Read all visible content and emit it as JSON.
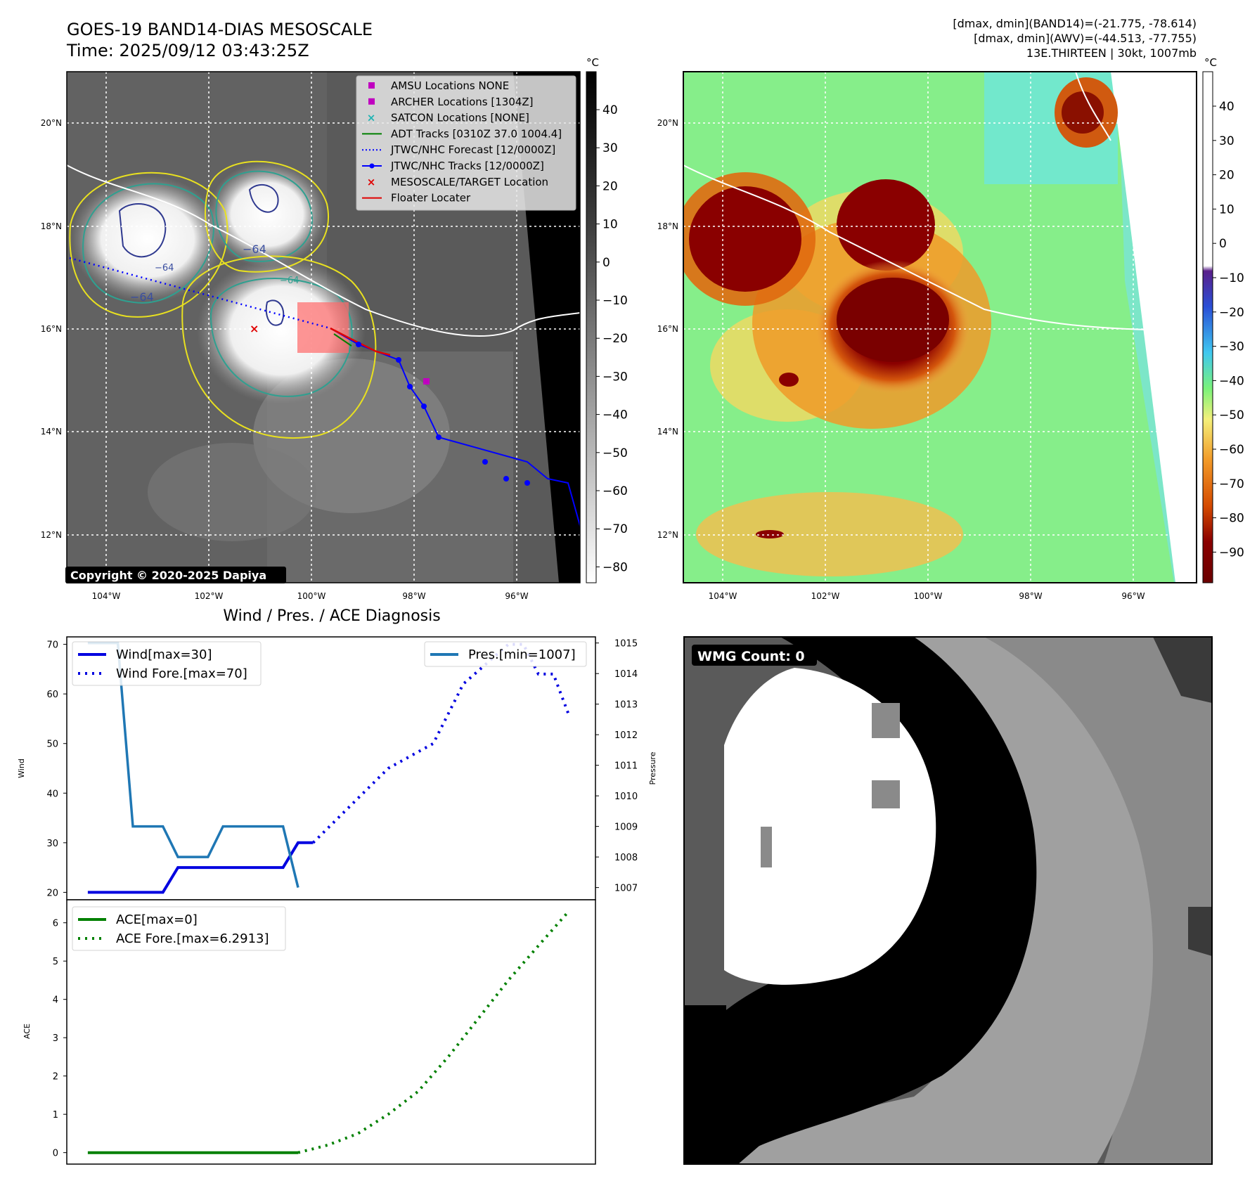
{
  "header": {
    "title_line1": "GOES-19 BAND14-DIAS MESOSCALE",
    "title_line2": "Time: 2025/09/12 03:43:25Z",
    "info_line1": "[dmax, dmin](BAND14)=(-21.775, -78.614)",
    "info_line2": "[dmax, dmin](AWV)=(-44.513, -77.755)",
    "info_line3": "13E.THIRTEEN | 30kt, 1007mb"
  },
  "copyright": "Copyright © 2020-2025 Dapiya",
  "map_axes": {
    "lat_labels": [
      "20°N",
      "18°N",
      "16°N",
      "14°N",
      "12°N"
    ],
    "lon_labels": [
      "104°W",
      "102°W",
      "100°W",
      "98°W",
      "96°W"
    ]
  },
  "legend": {
    "items": [
      {
        "label": "AMSU Locations NONE",
        "marker": "square",
        "color": "#c000c0"
      },
      {
        "label": "ARCHER Locations [1304Z]",
        "marker": "square",
        "color": "#c000c0"
      },
      {
        "label": "SATCON Locations [NONE]",
        "marker": "x",
        "color": "#1fb3b3"
      },
      {
        "label": "ADT Tracks [0310Z 37.0 1004.4]",
        "marker": "line",
        "color": "#008000"
      },
      {
        "label": "JTWC/NHC Forecast [12/0000Z]",
        "marker": "dotted",
        "color": "#0000ff"
      },
      {
        "label": "JTWC/NHC Tracks [12/0000Z]",
        "marker": "line-dot",
        "color": "#0000ff"
      },
      {
        "label": "MESOSCALE/TARGET Location",
        "marker": "x",
        "color": "#e00000"
      },
      {
        "label": "Floater Locater",
        "marker": "line",
        "color": "#e00000"
      }
    ]
  },
  "colorbar_ir": {
    "unit": "°C",
    "ticks": [
      "40",
      "30",
      "20",
      "10",
      "0",
      "−10",
      "−20",
      "−30",
      "−40",
      "−50",
      "−60",
      "−70",
      "−80"
    ]
  },
  "colorbar_awv": {
    "unit": "°C",
    "ticks": [
      "40",
      "30",
      "20",
      "10",
      "0",
      "−10",
      "−20",
      "−30",
      "−40",
      "−50",
      "−60",
      "−70",
      "−80",
      "−90"
    ]
  },
  "contour_labels": [
    "−64",
    "−64",
    "−64",
    "−64"
  ],
  "chart_data": [
    {
      "type": "line",
      "title": "Wind / Pres. / ACE Diagnosis",
      "ylabel": "Wind",
      "y2label": "Pressure",
      "ylim": [
        18.5,
        71.5
      ],
      "y2lim": [
        1006.6,
        1015.2
      ],
      "yticks": [
        20,
        30,
        40,
        50,
        60,
        70
      ],
      "y2ticks": [
        1007,
        1008,
        1009,
        1010,
        1011,
        1012,
        1013,
        1014,
        1015
      ],
      "x": [
        0,
        0.5,
        1,
        1.5,
        2,
        2.5,
        3,
        3.5,
        4,
        4.5,
        5,
        5.5,
        6,
        6.5,
        7,
        7.5,
        8,
        8.5,
        9,
        9.5,
        10,
        10.5,
        11,
        11.5,
        12,
        12.5,
        13,
        13.5,
        14,
        14.5,
        15,
        15.5,
        16
      ],
      "xlim": [
        -0.7,
        16.9
      ],
      "series": [
        {
          "name": "Wind[max=30]",
          "style": "solid",
          "color": "#0000e0",
          "axis": "left",
          "x": [
            0,
            2.5,
            3,
            4.5,
            5,
            6.5,
            7,
            7.5
          ],
          "values": [
            20,
            20,
            25,
            25,
            25,
            25,
            30,
            30
          ]
        },
        {
          "name": "Wind Fore.[max=70]",
          "style": "dotted",
          "color": "#0000e0",
          "axis": "left",
          "x": [
            7.5,
            10,
            11.5,
            12.5,
            14,
            14.5,
            15,
            15.5,
            16
          ],
          "values": [
            30,
            45,
            50,
            62,
            70,
            70,
            64,
            64,
            56
          ]
        },
        {
          "name": "Pres.[min=1007]",
          "style": "solid",
          "color": "#1f77b4",
          "axis": "right",
          "x": [
            0,
            1,
            1.5,
            2.5,
            3,
            4,
            4.5,
            5,
            5.5,
            6,
            6.5,
            7
          ],
          "values": [
            1015,
            1015,
            1009,
            1009,
            1008,
            1008,
            1009,
            1009,
            1009,
            1009,
            1009,
            1007
          ]
        }
      ]
    },
    {
      "type": "line",
      "ylabel": "ACE",
      "ylim": [
        -0.3,
        6.6
      ],
      "yticks": [
        0,
        1,
        2,
        3,
        4,
        5,
        6
      ],
      "xlim": [
        -0.7,
        16.9
      ],
      "series": [
        {
          "name": "ACE[max=0]",
          "style": "solid",
          "color": "#008000",
          "x": [
            0,
            7
          ],
          "values": [
            0,
            0
          ]
        },
        {
          "name": "ACE Fore.[max=6.2913]",
          "style": "dotted",
          "color": "#008000",
          "x": [
            7,
            8,
            9,
            10,
            11,
            12,
            13,
            14,
            15,
            16
          ],
          "values": [
            0,
            0.2,
            0.5,
            1.0,
            1.6,
            2.5,
            3.5,
            4.5,
            5.4,
            6.29
          ]
        }
      ]
    }
  ],
  "wmg": {
    "label": "WMG Count: 0"
  }
}
